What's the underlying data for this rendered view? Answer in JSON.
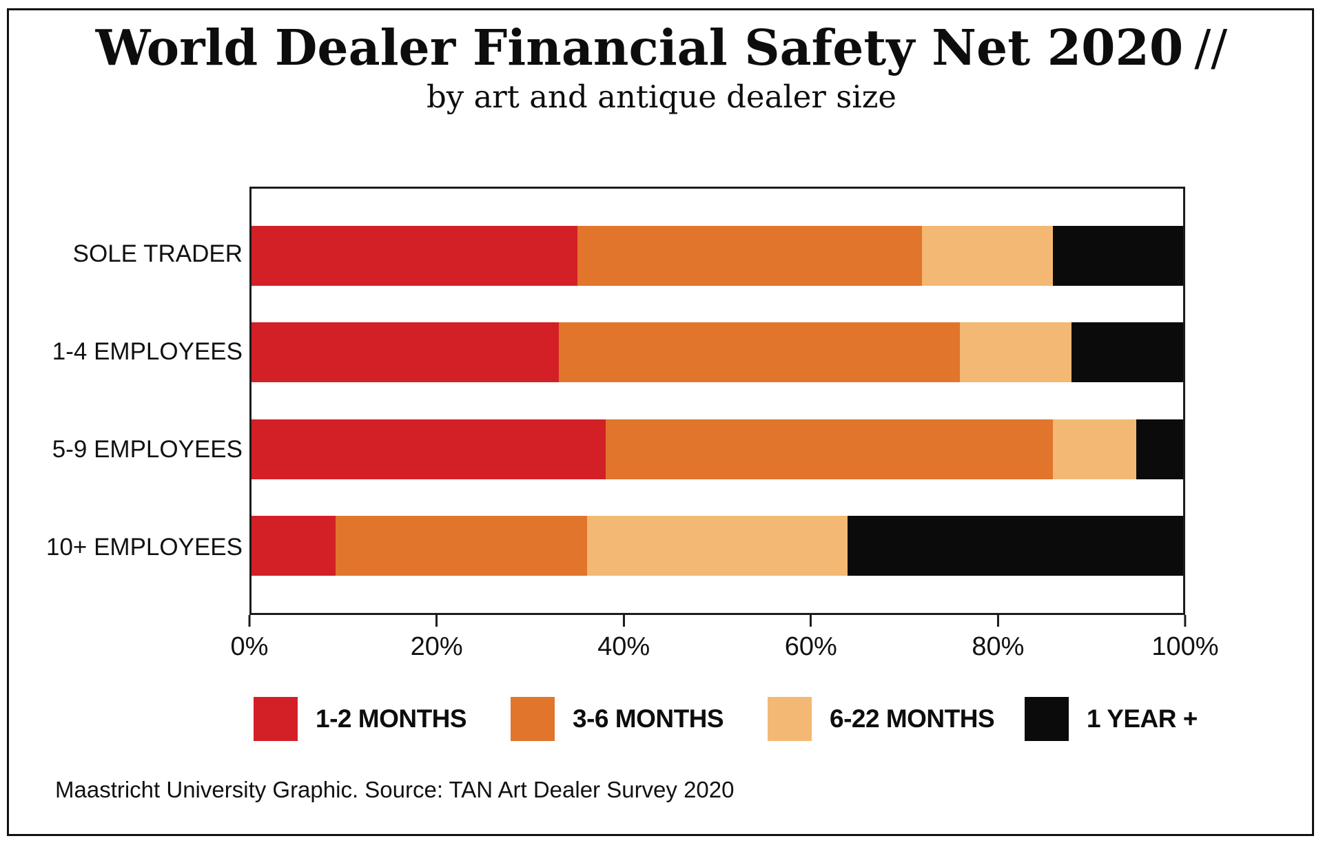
{
  "title": {
    "main": "World Dealer Financial Safety Net 2020",
    "suffix": "//",
    "subtitle": "by art and antique dealer size"
  },
  "source_note": "Maastricht University Graphic. Source: TAN Art Dealer Survey 2020",
  "chart_data": {
    "type": "bar",
    "stacked": true,
    "orientation": "horizontal",
    "title": "World Dealer Financial Safety Net 2020 //",
    "subtitle": "by art and antique dealer size",
    "categories": [
      "SOLE TRADER",
      "1-4 EMPLOYEES",
      "5-9 EMPLOYEES",
      "10+ EMPLOYEES"
    ],
    "series": [
      {
        "name": "1-2 MONTHS",
        "color": "#d32026",
        "values": [
          35,
          33,
          38,
          9
        ]
      },
      {
        "name": "3-6 MONTHS",
        "color": "#e1752c",
        "values": [
          37,
          43,
          48,
          27
        ]
      },
      {
        "name": "6-22 MONTHS",
        "color": "#f3b873",
        "values": [
          14,
          12,
          9,
          28
        ]
      },
      {
        "name": "1 YEAR +",
        "color": "#0b0b0b",
        "values": [
          14,
          12,
          5,
          36
        ]
      }
    ],
    "x_ticks": [
      "0%",
      "20%",
      "40%",
      "60%",
      "80%",
      "100%"
    ],
    "xlim": [
      0,
      100
    ],
    "unit": "%",
    "xlabel": "",
    "ylabel": "",
    "grid": false,
    "legend_position": "bottom",
    "axis_color": "#1c1c1c"
  }
}
